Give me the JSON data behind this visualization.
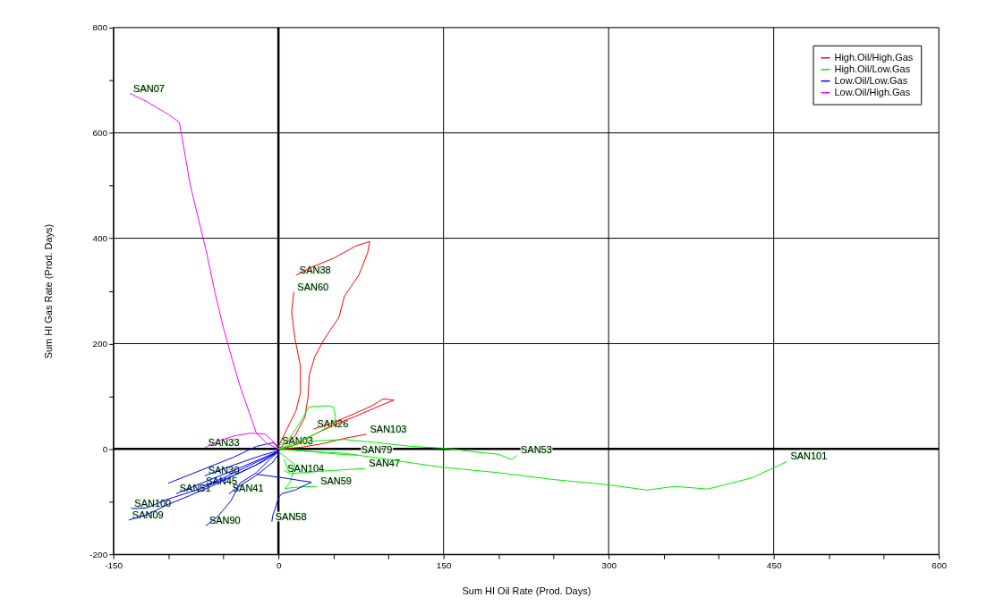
{
  "chart_data": {
    "type": "line",
    "xlabel": "Sum HI Oil Rate (Prod. Days)",
    "ylabel": "Sum HI Gas Rate (Prod. Days)",
    "xlim": [
      -150,
      600
    ],
    "ylim": [
      -200,
      800
    ],
    "xticks": [
      -150,
      {
        "value": -100,
        "label": null
      },
      {
        "value": -50,
        "label": null
      },
      0,
      {
        "value": 50,
        "label": null
      },
      {
        "value": 100,
        "label": null
      },
      150,
      {
        "value": 200,
        "label": null
      },
      {
        "value": 250,
        "label": null
      },
      300,
      {
        "value": 350,
        "label": null
      },
      {
        "value": 400,
        "label": null
      },
      450,
      {
        "value": 500,
        "label": null
      },
      {
        "value": 550,
        "label": null
      },
      600
    ],
    "yticks": [
      -200,
      {
        "value": -100,
        "label": null
      },
      0,
      {
        "value": 100,
        "label": null
      },
      200,
      {
        "value": 300,
        "label": null
      },
      400,
      {
        "value": 500,
        "label": null
      },
      600,
      {
        "value": 700,
        "label": null
      },
      800
    ],
    "grid": true,
    "legend": "top right",
    "marker": "none",
    "line_style": "solid",
    "series": [
      {
        "name": "High.Oil/High.Gas",
        "color": "#ff0000",
        "x": [
          16,
          30,
          50,
          70,
          83,
          81,
          73,
          60,
          55,
          42,
          33,
          28,
          27,
          24,
          15,
          5,
          0,
          null,
          14,
          12,
          15,
          20,
          20,
          16,
          8,
          0,
          null,
          32,
          50,
          70,
          85,
          95,
          105,
          90,
          70,
          50,
          30,
          12,
          0,
          null,
          80,
          60,
          40,
          20,
          0
        ],
        "values": [
          330,
          345,
          362,
          385,
          394,
          372,
          330,
          290,
          250,
          210,
          175,
          140,
          100,
          60,
          25,
          8,
          0,
          null,
          298,
          260,
          210,
          157,
          107,
          73,
          39,
          5,
          null,
          38,
          50,
          68,
          82,
          95,
          93,
          80,
          62,
          45,
          25,
          5,
          0,
          null,
          28,
          20,
          10,
          3,
          0
        ]
      },
      {
        "name": "High.Oil/Low.Gas",
        "color": "#00ee00",
        "x": [
          0,
          30,
          60,
          90,
          120,
          155,
          175,
          200,
          212,
          217,
          null,
          0,
          30,
          60,
          100,
          150,
          200,
          250,
          300,
          335,
          360,
          390,
          430,
          462,
          null,
          5,
          10,
          40,
          79,
          null,
          0,
          15,
          11,
          6,
          20,
          35,
          null,
          5,
          10,
          null,
          0,
          10,
          18,
          28,
          45,
          50,
          52,
          50,
          35,
          20,
          0,
          null,
          0,
          30,
          55,
          72
        ],
        "values": [
          0,
          15,
          18,
          12,
          5,
          1,
          -5,
          -10,
          -20,
          -12,
          null,
          0,
          -5,
          -8,
          -20,
          -35,
          -45,
          -58,
          -68,
          -78,
          -71,
          -76,
          -55,
          -24,
          null,
          -40,
          -47,
          -42,
          -37,
          null,
          -5,
          -30,
          -62,
          -75,
          -72,
          -71,
          null,
          -20,
          -45,
          null,
          5,
          20,
          45,
          80,
          82,
          80,
          60,
          48,
          30,
          15,
          0,
          null,
          0,
          -5,
          -10,
          -12
        ]
      },
      {
        "name": "Low.Oil/Low.Gas",
        "color": "#0000ff",
        "x": [
          -136,
          -120,
          -100,
          -80,
          -60,
          -40,
          -20,
          0,
          null,
          -134,
          -120,
          -100,
          -70,
          -40,
          -15,
          0,
          null,
          -66,
          -55,
          -43,
          -35,
          -20,
          -8,
          0,
          null,
          -6,
          -5,
          -2,
          0,
          3,
          15,
          30,
          20,
          5,
          -20,
          null,
          -45,
          -35,
          -20,
          -5,
          0,
          null,
          -69,
          -50,
          -30,
          -10,
          0,
          null,
          -67,
          -40,
          -15,
          0,
          null,
          -93,
          -70,
          -40,
          -15,
          0,
          null,
          -100,
          -70,
          -40,
          -20,
          -5,
          0
        ],
        "values": [
          -135,
          -125,
          -105,
          -88,
          -70,
          -50,
          -30,
          -5,
          null,
          -113,
          -112,
          -95,
          -75,
          -50,
          -25,
          -5,
          null,
          -146,
          -128,
          -98,
          -65,
          -45,
          -20,
          -5,
          null,
          -138,
          -125,
          -108,
          -92,
          -85,
          -78,
          -63,
          -60,
          -55,
          -48,
          null,
          -85,
          -70,
          -50,
          -25,
          -10,
          null,
          -71,
          -55,
          -35,
          -15,
          -5,
          null,
          -51,
          -30,
          -12,
          -3,
          null,
          -85,
          -65,
          -40,
          -18,
          -4,
          null,
          -65,
          -40,
          -15,
          5,
          12,
          5
        ]
      },
      {
        "name": "Low.Oil/High.Gas",
        "color": "#ff00ff",
        "x": [
          -135,
          -120,
          -100,
          -90,
          -85,
          -80,
          -73,
          -65,
          -58,
          -50,
          -42,
          -35,
          -25,
          -20,
          -10,
          0,
          null,
          -67,
          -55,
          -40,
          -25,
          -12,
          -5,
          0
        ],
        "values": [
          675,
          660,
          635,
          620,
          560,
          500,
          440,
          370,
          300,
          230,
          170,
          120,
          60,
          30,
          10,
          0,
          null,
          2,
          15,
          25,
          30,
          28,
          15,
          0
        ]
      }
    ],
    "annotations": [
      {
        "text": "SAN07",
        "x": -135,
        "y": 675
      },
      {
        "text": "SAN38",
        "x": 16,
        "y": 330
      },
      {
        "text": "SAN60",
        "x": 14,
        "y": 298
      },
      {
        "text": "SAN26",
        "x": 32,
        "y": 38
      },
      {
        "text": "SAN103",
        "x": 80,
        "y": 28
      },
      {
        "text": "SAN53",
        "x": 217,
        "y": -12
      },
      {
        "text": "SAN101",
        "x": 462,
        "y": -24
      },
      {
        "text": "SAN47",
        "x": 79,
        "y": -37
      },
      {
        "text": "SAN59",
        "x": 35,
        "y": -71
      },
      {
        "text": "SAN104",
        "x": 5,
        "y": -47
      },
      {
        "text": "SAN79",
        "x": 72,
        "y": -12
      },
      {
        "text": "SAN03",
        "x": 0,
        "y": 5
      },
      {
        "text": "SAN33",
        "x": -67,
        "y": 2
      },
      {
        "text": "SAN09",
        "x": -136,
        "y": -135
      },
      {
        "text": "SAN100",
        "x": -134,
        "y": -113
      },
      {
        "text": "SAN90",
        "x": -66,
        "y": -146
      },
      {
        "text": "SAN58",
        "x": -6,
        "y": -138
      },
      {
        "text": "SAN41",
        "x": -45,
        "y": -85
      },
      {
        "text": "SAN45",
        "x": -69,
        "y": -71
      },
      {
        "text": "SAN30",
        "x": -67,
        "y": -51
      },
      {
        "text": "SAN51",
        "x": -93,
        "y": -85
      }
    ]
  }
}
